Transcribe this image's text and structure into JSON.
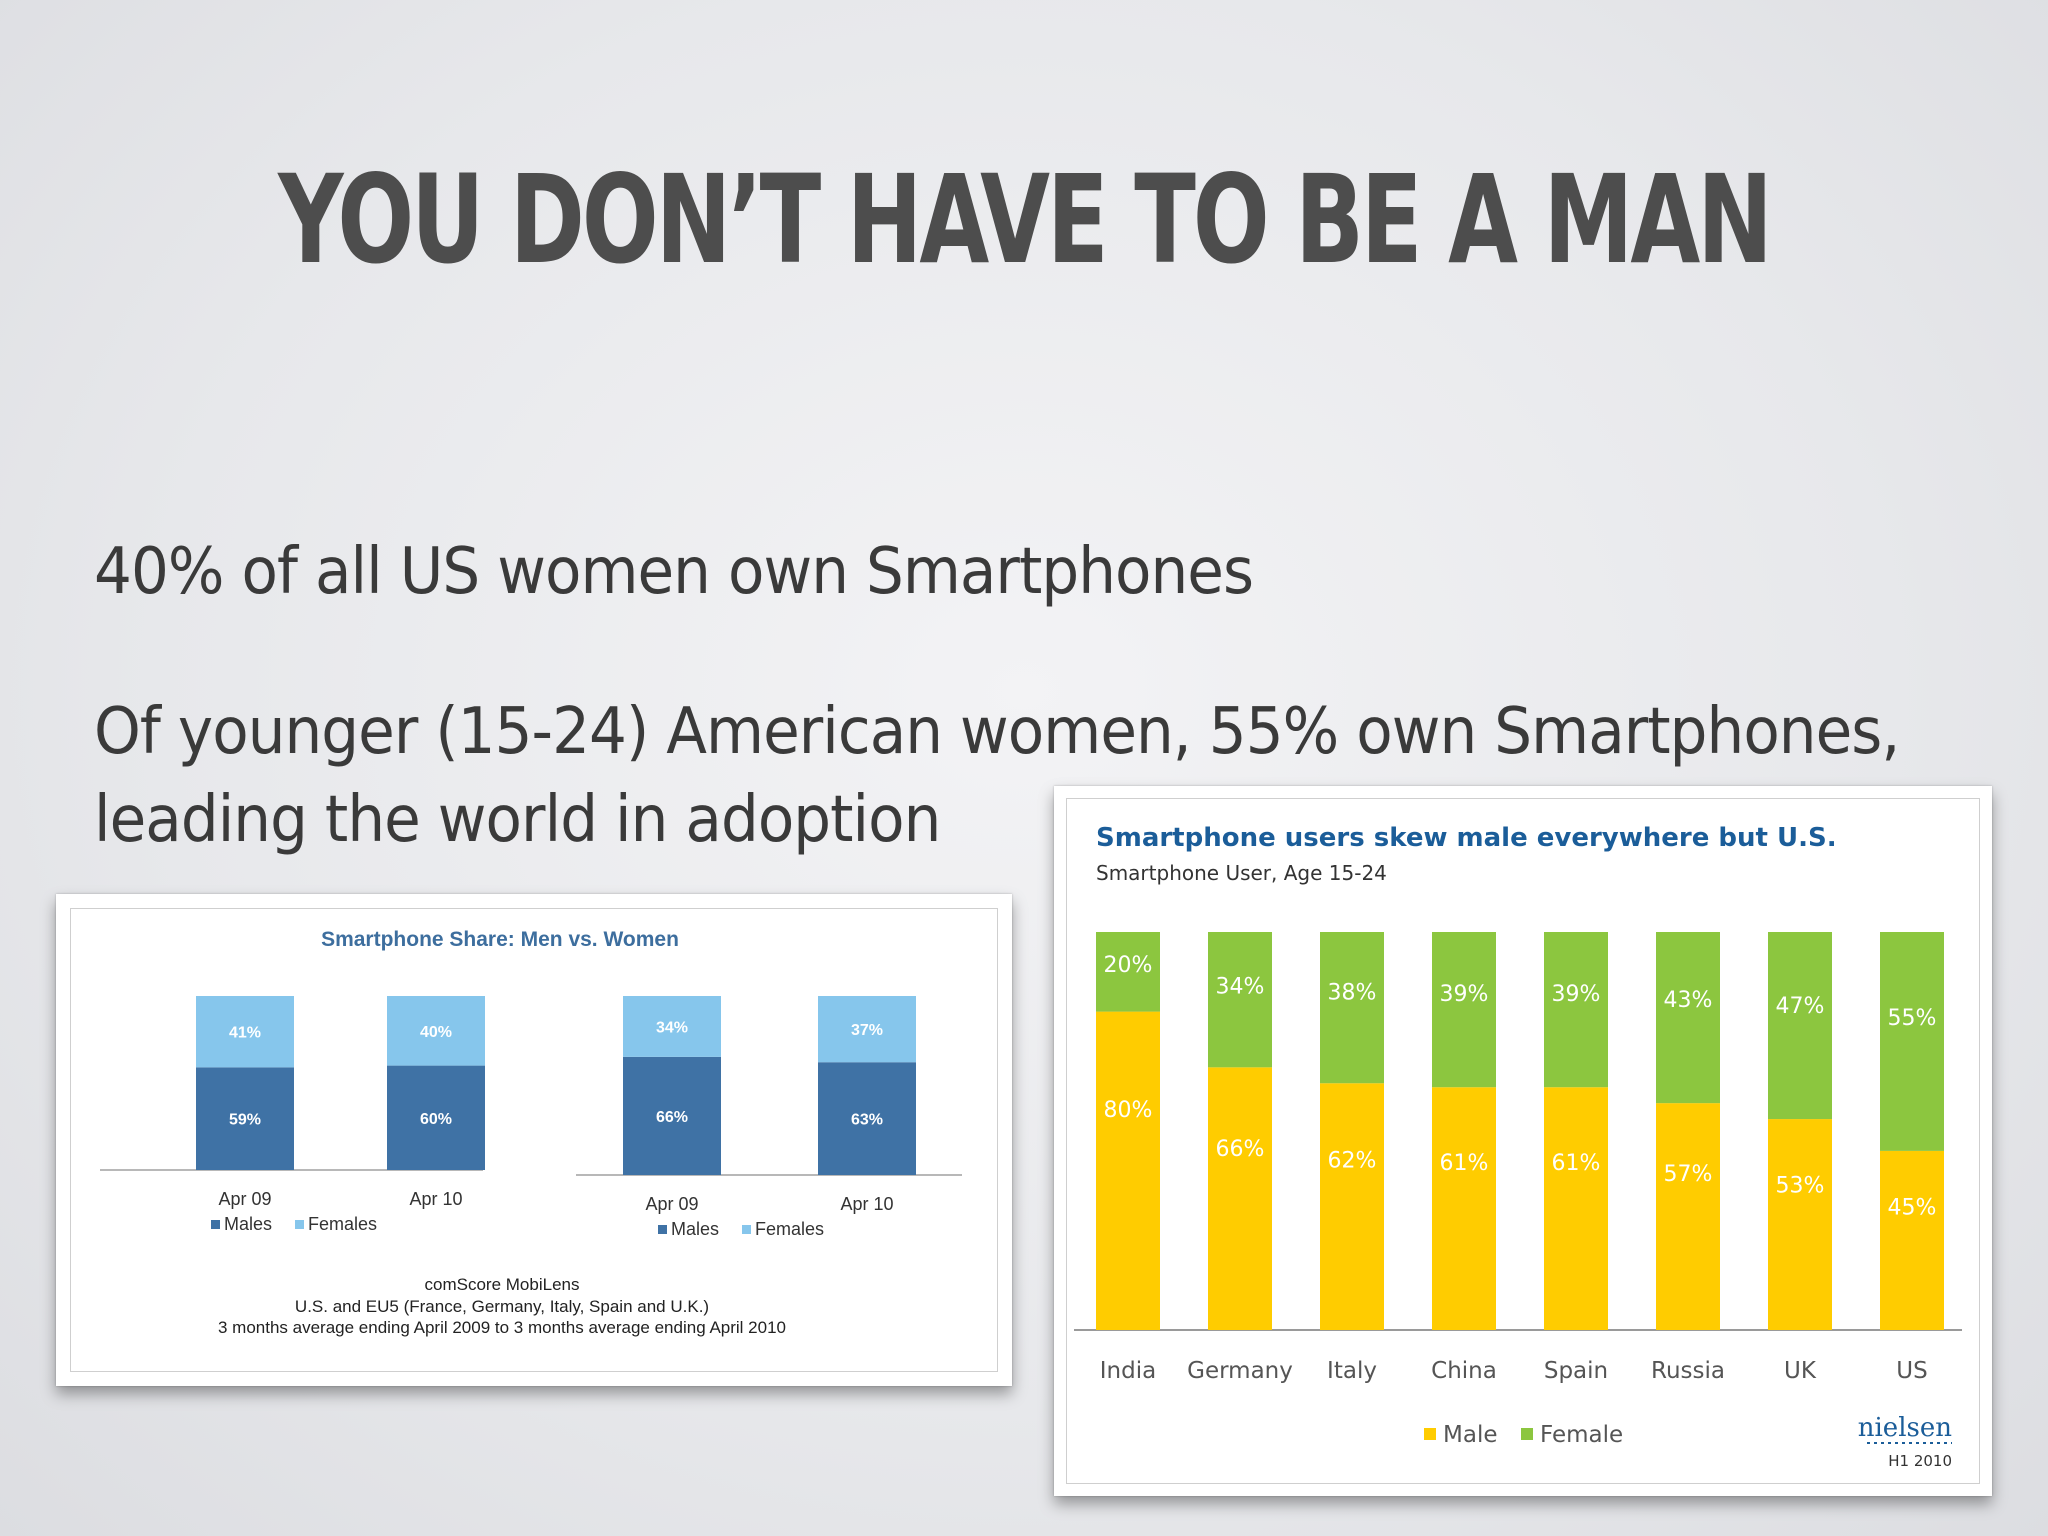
{
  "slide": {
    "title": "YOU DON’T HAVE TO BE A MAN",
    "bullets": [
      "40% of all US women own Smartphones",
      "Of younger (15-24) American women, 55% own Smartphones,",
      "leading the world in adoption"
    ]
  },
  "chart_data": [
    {
      "type": "bar",
      "stacked": true,
      "title": "Smartphone Share: Men vs. Women",
      "groups": [
        {
          "categories": [
            "Apr 09",
            "Apr 10"
          ],
          "series": [
            {
              "name": "Males",
              "values": [
                59,
                60
              ],
              "labels": [
                "59%",
                "60%"
              ]
            },
            {
              "name": "Females",
              "values": [
                41,
                40
              ],
              "labels": [
                "41%",
                "40%"
              ]
            }
          ]
        },
        {
          "categories": [
            "Apr 09",
            "Apr 10"
          ],
          "series": [
            {
              "name": "Males",
              "values": [
                66,
                63
              ],
              "labels": [
                "66%",
                "63%"
              ]
            },
            {
              "name": "Females",
              "values": [
                34,
                37
              ],
              "labels": [
                "34%",
                "37%"
              ]
            }
          ]
        }
      ],
      "legend": [
        "Males",
        "Females"
      ],
      "colors": {
        "Males": "#3f72a5",
        "Females": "#86c6ec"
      },
      "source_lines": [
        "comScore MobiLens",
        "U.S. and EU5 (France, Germany, Italy, Spain and U.K.)",
        "3 months average ending April 2009 to 3 months average ending April 2010"
      ]
    },
    {
      "type": "bar",
      "stacked": true,
      "title": "Smartphone users skew male everywhere but U.S.",
      "subtitle": "Smartphone User, Age 15-24",
      "categories": [
        "India",
        "Germany",
        "Italy",
        "China",
        "Spain",
        "Russia",
        "UK",
        "US"
      ],
      "series": [
        {
          "name": "Male",
          "values": [
            80,
            66,
            62,
            61,
            61,
            57,
            53,
            45
          ],
          "labels": [
            "80%",
            "66%",
            "62%",
            "61%",
            "61%",
            "57%",
            "53%",
            "45%"
          ]
        },
        {
          "name": "Female",
          "values": [
            20,
            34,
            38,
            39,
            39,
            43,
            47,
            55
          ],
          "labels": [
            "20%",
            "34%",
            "38%",
            "39%",
            "39%",
            "43%",
            "47%",
            "55%"
          ]
        }
      ],
      "legend": [
        "Male",
        "Female"
      ],
      "colors": {
        "Male": "#ffcc00",
        "Female": "#8cc63f"
      },
      "ylim": [
        0,
        100
      ],
      "brand": "nielsen",
      "footnote": "H1 2010"
    }
  ]
}
